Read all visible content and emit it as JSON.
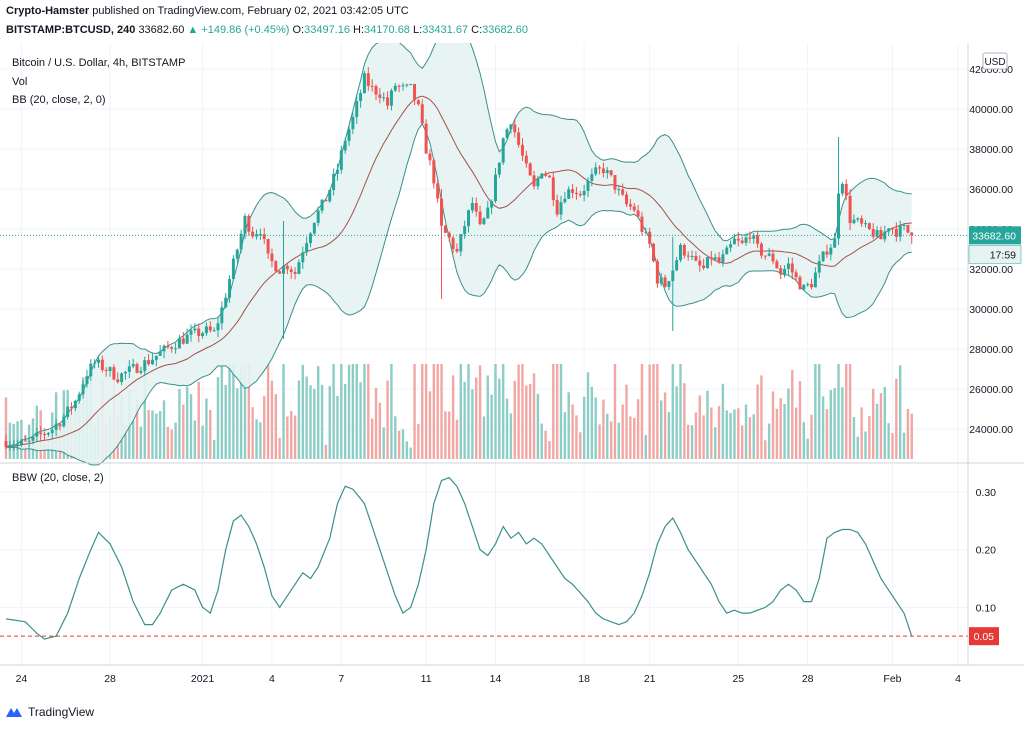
{
  "header": {
    "author": "Crypto-Hamster",
    "published": "published on TradingView.com, February 02, 2021 03:42:05 UTC",
    "symbol": "BITSTAMP:BTCUSD, 240",
    "last": "33682.60",
    "change": "▲ +149.86 (+0.45%)",
    "o_label": "O:",
    "o_value": "33497.16",
    "h_label": "H:",
    "h_value": "34170.68",
    "l_label": "L:",
    "l_value": "33431.67",
    "c_label": "C:",
    "c_value": "33682.60"
  },
  "main_legend": {
    "title": "Bitcoin / U.S. Dollar, 4h, BITSTAMP",
    "vol": "Vol",
    "bb": "BB (20, close, 2, 0)"
  },
  "sub_legend": {
    "bbw": "BBW (20, close, 2)"
  },
  "currency_badge": "USD",
  "price_tag": "33682.60",
  "countdown_tag": "17:59",
  "bbw_tag": "0.05",
  "footer": {
    "brand": "TradingView"
  },
  "colors": {
    "up": "#26a69a",
    "down": "#ef5350",
    "band": "#3b8f8a",
    "basis": "#a5524a",
    "band_fill": "#e6f3f2",
    "vol_up": "#8ccdc6",
    "vol_down": "#f2a7a4",
    "bbw_line": "#3b8f8a",
    "red_tag": "#e53935",
    "price_tag": "#26a69a"
  },
  "chart_data": [
    {
      "type": "candlestick",
      "title": "Bitcoin / U.S. Dollar, 4h, BITSTAMP",
      "ylim": [
        22500,
        43000
      ],
      "yticks": [
        24000,
        26000,
        28000,
        30000,
        32000,
        34000,
        36000,
        38000,
        40000,
        42000
      ],
      "ytick_labels": [
        "24000.00",
        "26000.00",
        "28000.00",
        "30000.00",
        "32000.00",
        "34000.00",
        "36000.00",
        "38000.00",
        "40000.00",
        "42000.00"
      ],
      "x_ticks": [
        {
          "label": "24",
          "index": 4
        },
        {
          "label": "28",
          "index": 27
        },
        {
          "label": "2021",
          "index": 51
        },
        {
          "label": "4",
          "index": 69
        },
        {
          "label": "7",
          "index": 87
        },
        {
          "label": "11",
          "index": 109
        },
        {
          "label": "14",
          "index": 127
        },
        {
          "label": "18",
          "index": 150
        },
        {
          "label": "21",
          "index": 167
        },
        {
          "label": "25",
          "index": 190
        },
        {
          "label": "28",
          "index": 208
        },
        {
          "label": "Feb",
          "index": 230
        },
        {
          "label": "4",
          "index": 247
        }
      ],
      "n_bars": 236,
      "close_anchors": [
        [
          0,
          23400
        ],
        [
          3,
          23200
        ],
        [
          6,
          23300
        ],
        [
          9,
          23700
        ],
        [
          12,
          24000
        ],
        [
          15,
          24600
        ],
        [
          18,
          25400
        ],
        [
          21,
          26800
        ],
        [
          23,
          27300
        ],
        [
          26,
          27000
        ],
        [
          29,
          26600
        ],
        [
          33,
          27000
        ],
        [
          37,
          27400
        ],
        [
          40,
          27800
        ],
        [
          44,
          28300
        ],
        [
          48,
          28700
        ],
        [
          52,
          28900
        ],
        [
          54,
          28800
        ],
        [
          56,
          30000
        ],
        [
          58,
          31500
        ],
        [
          60,
          33000
        ],
        [
          62,
          34500
        ],
        [
          64,
          33800
        ],
        [
          66,
          34000
        ],
        [
          68,
          32500
        ],
        [
          71,
          32000
        ],
        [
          73,
          32200
        ],
        [
          75,
          31800
        ],
        [
          77,
          33000
        ],
        [
          80,
          34500
        ],
        [
          83,
          35500
        ],
        [
          86,
          37000
        ],
        [
          88,
          38500
        ],
        [
          90,
          39500
        ],
        [
          93,
          41500
        ],
        [
          95,
          41000
        ],
        [
          97,
          40800
        ],
        [
          99,
          40200
        ],
        [
          101,
          41200
        ],
        [
          103,
          41000
        ],
        [
          105,
          41000
        ],
        [
          107,
          40000
        ],
        [
          109,
          38000
        ],
        [
          111,
          36500
        ],
        [
          113,
          34000
        ],
        [
          115,
          33500
        ],
        [
          117,
          32800
        ],
        [
          119,
          34200
        ],
        [
          121,
          35300
        ],
        [
          123,
          34000
        ],
        [
          125,
          34800
        ],
        [
          127,
          36500
        ],
        [
          129,
          38500
        ],
        [
          131,
          39500
        ],
        [
          133,
          38200
        ],
        [
          135,
          37000
        ],
        [
          137,
          36000
        ],
        [
          139,
          37000
        ],
        [
          141,
          36500
        ],
        [
          143,
          35000
        ],
        [
          145,
          35800
        ],
        [
          147,
          36000
        ],
        [
          149,
          35800
        ],
        [
          151,
          36300
        ],
        [
          153,
          36800
        ],
        [
          155,
          37000
        ],
        [
          157,
          36500
        ],
        [
          159,
          35800
        ],
        [
          161,
          35200
        ],
        [
          163,
          35000
        ],
        [
          165,
          34000
        ],
        [
          167,
          33200
        ],
        [
          169,
          31500
        ],
        [
          171,
          31200
        ],
        [
          173,
          32000
        ],
        [
          175,
          33000
        ],
        [
          177,
          32800
        ],
        [
          179,
          32200
        ],
        [
          181,
          32000
        ],
        [
          183,
          32600
        ],
        [
          185,
          32300
        ],
        [
          187,
          32800
        ],
        [
          189,
          33400
        ],
        [
          191,
          33200
        ],
        [
          193,
          33800
        ],
        [
          195,
          33000
        ],
        [
          197,
          32700
        ],
        [
          199,
          32500
        ],
        [
          201,
          31800
        ],
        [
          203,
          32200
        ],
        [
          205,
          31500
        ],
        [
          207,
          31000
        ],
        [
          209,
          31300
        ],
        [
          211,
          32200
        ],
        [
          213,
          33000
        ],
        [
          215,
          33400
        ],
        [
          216,
          36000
        ],
        [
          217,
          36500
        ],
        [
          219,
          34500
        ],
        [
          221,
          34300
        ],
        [
          223,
          34000
        ],
        [
          225,
          33800
        ],
        [
          227,
          33500
        ],
        [
          229,
          34200
        ],
        [
          231,
          33900
        ],
        [
          233,
          34000
        ],
        [
          235,
          33682.6
        ]
      ],
      "spikes": [
        {
          "index": 216,
          "high": 38600,
          "low": 33200
        },
        {
          "index": 173,
          "high": 33600,
          "low": 28900
        },
        {
          "index": 113,
          "high": 36000,
          "low": 30500
        },
        {
          "index": 72,
          "high": 34400,
          "low": 28500
        }
      ],
      "volume_scale_max": 6000
    },
    {
      "type": "line",
      "title": "BBW (20, close, 2)",
      "ylim": [
        0.0,
        0.34
      ],
      "yticks": [
        0.1,
        0.2,
        0.3
      ],
      "ytick_labels": [
        "0.10",
        "0.20",
        "0.30"
      ],
      "reference_line": 0.05,
      "anchors": [
        [
          0,
          0.08
        ],
        [
          5,
          0.075
        ],
        [
          8,
          0.055
        ],
        [
          10,
          0.045
        ],
        [
          13,
          0.05
        ],
        [
          16,
          0.09
        ],
        [
          19,
          0.15
        ],
        [
          22,
          0.2
        ],
        [
          24,
          0.23
        ],
        [
          27,
          0.21
        ],
        [
          30,
          0.17
        ],
        [
          33,
          0.11
        ],
        [
          36,
          0.07
        ],
        [
          38,
          0.07
        ],
        [
          40,
          0.09
        ],
        [
          43,
          0.13
        ],
        [
          46,
          0.14
        ],
        [
          49,
          0.13
        ],
        [
          51,
          0.1
        ],
        [
          53,
          0.09
        ],
        [
          55,
          0.13
        ],
        [
          57,
          0.2
        ],
        [
          59,
          0.25
        ],
        [
          61,
          0.26
        ],
        [
          63,
          0.24
        ],
        [
          65,
          0.21
        ],
        [
          67,
          0.17
        ],
        [
          69,
          0.12
        ],
        [
          71,
          0.1
        ],
        [
          73,
          0.12
        ],
        [
          75,
          0.14
        ],
        [
          77,
          0.16
        ],
        [
          79,
          0.15
        ],
        [
          81,
          0.17
        ],
        [
          84,
          0.22
        ],
        [
          86,
          0.28
        ],
        [
          88,
          0.31
        ],
        [
          90,
          0.305
        ],
        [
          93,
          0.28
        ],
        [
          95,
          0.24
        ],
        [
          97,
          0.2
        ],
        [
          99,
          0.16
        ],
        [
          101,
          0.12
        ],
        [
          103,
          0.09
        ],
        [
          105,
          0.1
        ],
        [
          107,
          0.14
        ],
        [
          109,
          0.2
        ],
        [
          111,
          0.28
        ],
        [
          113,
          0.32
        ],
        [
          115,
          0.325
        ],
        [
          117,
          0.31
        ],
        [
          119,
          0.28
        ],
        [
          121,
          0.24
        ],
        [
          123,
          0.2
        ],
        [
          125,
          0.19
        ],
        [
          127,
          0.21
        ],
        [
          129,
          0.24
        ],
        [
          131,
          0.22
        ],
        [
          133,
          0.23
        ],
        [
          135,
          0.21
        ],
        [
          137,
          0.22
        ],
        [
          139,
          0.21
        ],
        [
          141,
          0.19
        ],
        [
          143,
          0.17
        ],
        [
          145,
          0.15
        ],
        [
          147,
          0.14
        ],
        [
          149,
          0.125
        ],
        [
          151,
          0.11
        ],
        [
          153,
          0.09
        ],
        [
          155,
          0.08
        ],
        [
          157,
          0.075
        ],
        [
          159,
          0.07
        ],
        [
          161,
          0.075
        ],
        [
          163,
          0.09
        ],
        [
          165,
          0.12
        ],
        [
          167,
          0.16
        ],
        [
          169,
          0.21
        ],
        [
          171,
          0.24
        ],
        [
          173,
          0.255
        ],
        [
          175,
          0.23
        ],
        [
          177,
          0.2
        ],
        [
          179,
          0.18
        ],
        [
          181,
          0.16
        ],
        [
          183,
          0.14
        ],
        [
          185,
          0.11
        ],
        [
          187,
          0.09
        ],
        [
          189,
          0.095
        ],
        [
          191,
          0.09
        ],
        [
          193,
          0.09
        ],
        [
          195,
          0.095
        ],
        [
          197,
          0.1
        ],
        [
          199,
          0.11
        ],
        [
          201,
          0.13
        ],
        [
          203,
          0.14
        ],
        [
          205,
          0.13
        ],
        [
          207,
          0.11
        ],
        [
          209,
          0.11
        ],
        [
          211,
          0.15
        ],
        [
          213,
          0.22
        ],
        [
          215,
          0.23
        ],
        [
          217,
          0.235
        ],
        [
          219,
          0.235
        ],
        [
          221,
          0.23
        ],
        [
          223,
          0.21
        ],
        [
          225,
          0.18
        ],
        [
          227,
          0.15
        ],
        [
          229,
          0.13
        ],
        [
          231,
          0.11
        ],
        [
          233,
          0.09
        ],
        [
          235,
          0.05
        ]
      ]
    }
  ]
}
